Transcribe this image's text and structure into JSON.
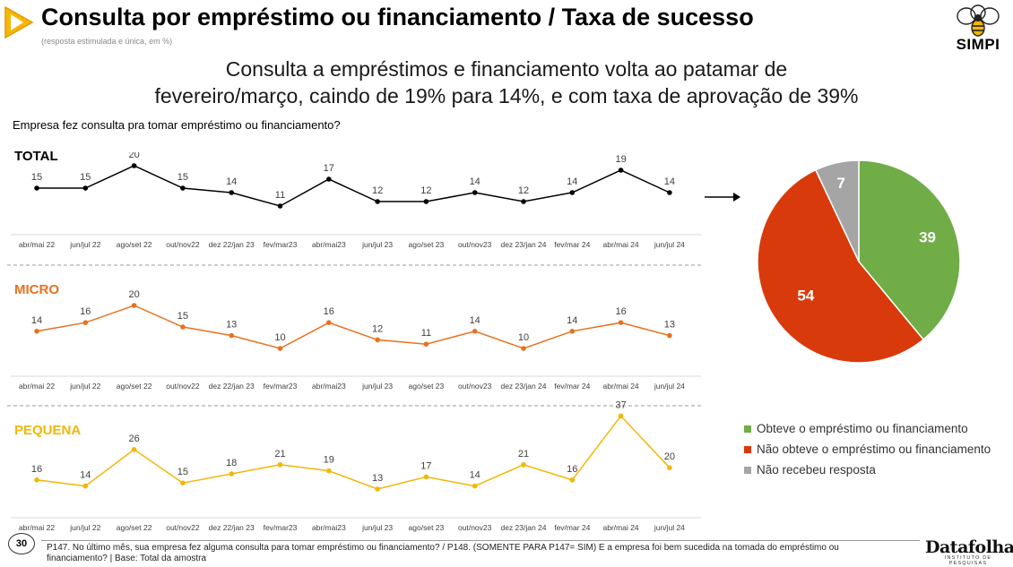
{
  "header": {
    "title": "Consulta por empréstimo ou financiamento / Taxa de sucesso",
    "subtitle": "(resposta estimulada e única, em %)",
    "logo_text": "SIMPI"
  },
  "headline": {
    "line1": "Consulta a empréstimos e financiamento volta ao patamar de",
    "line2": "fevereiro/março, caindo de 19% para 14%, e com taxa de aprovação de 39%"
  },
  "question": "Empresa fez consulta pra tomar empréstimo ou financiamento?",
  "segment_labels": {
    "total": "TOTAL",
    "micro": "MICRO",
    "pequena": "PEQUENA"
  },
  "chart_data": [
    {
      "type": "line",
      "x": [
        "abr/mai 22",
        "jun/jul 22",
        "ago/set 22",
        "out/nov22",
        "dez 22/jan 23",
        "fev/mar23",
        "abr/mai23",
        "jun/jul 23",
        "ago/set 23",
        "out/nov23",
        "dez 23/jan 24",
        "fev/mar 24",
        "abr/mai 24",
        "jun/jul 24"
      ],
      "series": [
        {
          "name": "TOTAL",
          "values": [
            15,
            15,
            20,
            15,
            14,
            11,
            17,
            12,
            12,
            14,
            12,
            14,
            19,
            14
          ],
          "color": "#000000"
        },
        {
          "name": "MICRO",
          "values": [
            14,
            16,
            20,
            15,
            13,
            10,
            16,
            12,
            11,
            14,
            10,
            14,
            16,
            13
          ],
          "color": "#e8711e"
        },
        {
          "name": "PEQUENA",
          "values": [
            16,
            14,
            26,
            15,
            18,
            21,
            19,
            13,
            17,
            14,
            21,
            16,
            37,
            20
          ],
          "color": "#f2b705"
        }
      ]
    },
    {
      "type": "pie",
      "labels": [
        "Obteve o empréstimo ou financiamento",
        "Não obteve o empréstimo ou financiamento",
        "Não recebeu resposta"
      ],
      "values": [
        39,
        54,
        7
      ],
      "colors": [
        "#70ad47",
        "#d93a0b",
        "#a5a5a5"
      ]
    }
  ],
  "legend": [
    {
      "label": "Obteve o empréstimo ou financiamento",
      "color": "#70ad47"
    },
    {
      "label": "Não obteve o empréstimo ou financiamento",
      "color": "#d93a0b"
    },
    {
      "label": "Não recebeu resposta",
      "color": "#a5a5a5"
    }
  ],
  "footer": {
    "page_number": "30",
    "note": "P147. No último mês, sua empresa fez alguma consulta para tomar empréstimo ou financiamento? / P148. (SOMENTE PARA P147= SIM) E a empresa foi bem sucedida na tomada do empréstimo ou financiamento?  |  Base: Total da amostra",
    "brand": "Datafolha",
    "brand_tagline": "INSTITUTO DE PESQUISAS"
  }
}
